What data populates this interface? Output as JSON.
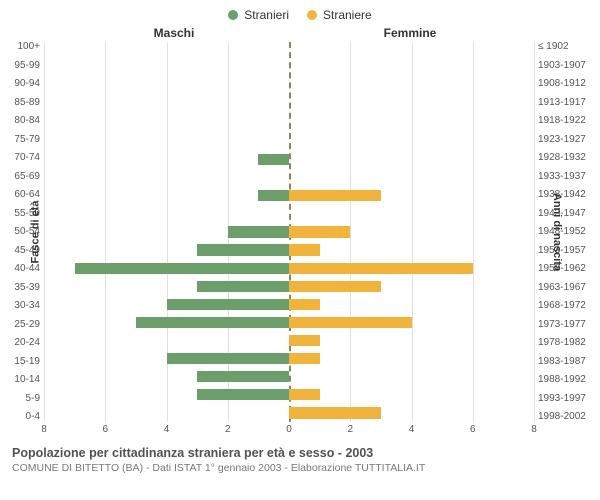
{
  "legend": {
    "male": {
      "label": "Stranieri",
      "color": "#6b9e6b"
    },
    "female": {
      "label": "Straniere",
      "color": "#f0b43c"
    }
  },
  "column_headers": {
    "male": "Maschi",
    "female": "Femmine"
  },
  "axis_labels": {
    "left": "Fasce di età",
    "right": "Anni di nascita"
  },
  "x_axis": {
    "min": 0,
    "max": 8,
    "ticks": [
      8,
      6,
      4,
      2,
      0,
      2,
      4,
      6,
      8
    ]
  },
  "grid_color": "#e0e0e0",
  "center_line_color": "#888855",
  "background_color": "#ffffff",
  "bar_colors": {
    "male": "#6b9e6b",
    "female": "#f0b43c"
  },
  "bar_height_ratio": 0.62,
  "title_fontsize": 12.5,
  "sub_fontsize": 10.5,
  "rows": [
    {
      "age": "100+",
      "birth": "≤ 1902",
      "male": 0,
      "female": 0
    },
    {
      "age": "95-99",
      "birth": "1903-1907",
      "male": 0,
      "female": 0
    },
    {
      "age": "90-94",
      "birth": "1908-1912",
      "male": 0,
      "female": 0
    },
    {
      "age": "85-89",
      "birth": "1913-1917",
      "male": 0,
      "female": 0
    },
    {
      "age": "80-84",
      "birth": "1918-1922",
      "male": 0,
      "female": 0
    },
    {
      "age": "75-79",
      "birth": "1923-1927",
      "male": 0,
      "female": 0
    },
    {
      "age": "70-74",
      "birth": "1928-1932",
      "male": 1,
      "female": 0
    },
    {
      "age": "65-69",
      "birth": "1933-1937",
      "male": 0,
      "female": 0
    },
    {
      "age": "60-64",
      "birth": "1938-1942",
      "male": 1,
      "female": 3
    },
    {
      "age": "55-59",
      "birth": "1943-1947",
      "male": 0,
      "female": 0
    },
    {
      "age": "50-54",
      "birth": "1948-1952",
      "male": 2,
      "female": 2
    },
    {
      "age": "45-49",
      "birth": "1953-1957",
      "male": 3,
      "female": 1
    },
    {
      "age": "40-44",
      "birth": "1958-1962",
      "male": 7,
      "female": 6
    },
    {
      "age": "35-39",
      "birth": "1963-1967",
      "male": 3,
      "female": 3
    },
    {
      "age": "30-34",
      "birth": "1968-1972",
      "male": 4,
      "female": 1
    },
    {
      "age": "25-29",
      "birth": "1973-1977",
      "male": 5,
      "female": 4
    },
    {
      "age": "20-24",
      "birth": "1978-1982",
      "male": 0,
      "female": 1
    },
    {
      "age": "15-19",
      "birth": "1983-1987",
      "male": 4,
      "female": 1
    },
    {
      "age": "10-14",
      "birth": "1988-1992",
      "male": 3,
      "female": 0
    },
    {
      "age": "5-9",
      "birth": "1993-1997",
      "male": 3,
      "female": 1
    },
    {
      "age": "0-4",
      "birth": "1998-2002",
      "male": 0,
      "female": 3
    }
  ],
  "caption": {
    "title": "Popolazione per cittadinanza straniera per età e sesso - 2003",
    "subtitle": "COMUNE DI BITETTO (BA) - Dati ISTAT 1° gennaio 2003 - Elaborazione TUTTITALIA.IT"
  }
}
